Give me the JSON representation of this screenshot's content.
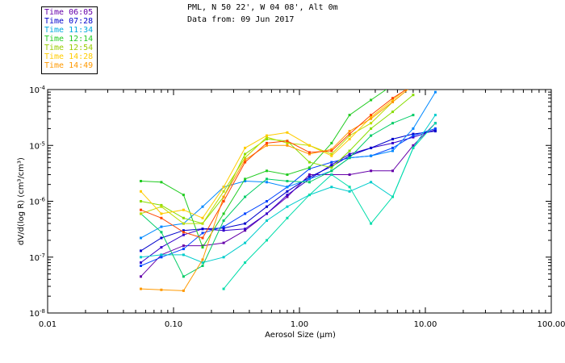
{
  "chart_data": {
    "type": "line",
    "title": "PML, N 50 22', W 04 08', Alt 0m",
    "subtitle": "Data from: 09 Jun 2017",
    "xlabel": "Aerosol Size (µm)",
    "ylabel": "dV/d(log R) (cm³/cm³)",
    "xscale": "log",
    "yscale": "log",
    "xlim": [
      0.01,
      100
    ],
    "ylim": [
      1e-08,
      0.0001
    ],
    "x_ticks": [
      {
        "value": 0.01,
        "label": "0.01"
      },
      {
        "value": 0.1,
        "label": "0.10"
      },
      {
        "value": 1,
        "label": "1.00"
      },
      {
        "value": 10,
        "label": "10.00"
      },
      {
        "value": 100,
        "label": "100.00"
      }
    ],
    "y_ticks": [
      {
        "value": 1e-08,
        "base": "10",
        "exp": "-8"
      },
      {
        "value": 1e-07,
        "base": "10",
        "exp": "-7"
      },
      {
        "value": 1e-06,
        "base": "10",
        "exp": "-6"
      },
      {
        "value": 1e-05,
        "base": "10",
        "exp": "-5"
      },
      {
        "value": 0.0001,
        "base": "10",
        "exp": "-4"
      }
    ],
    "x": [
      0.055,
      0.08,
      0.12,
      0.17,
      0.25,
      0.37,
      0.55,
      0.8,
      1.2,
      1.8,
      2.5,
      3.7,
      5.5,
      8.0,
      12.0
    ],
    "series": [
      {
        "name": "Time 06:05",
        "color": "#6600aa",
        "values": [
          4.5e-08,
          1.1e-07,
          1.6e-07,
          1.6e-07,
          1.8e-07,
          3e-07,
          6e-07,
          1.2e-06,
          3e-06,
          3e-06,
          3e-06,
          3.5e-06,
          3.5e-06,
          1e-05,
          2.5e-05
        ]
      },
      {
        "name": "Time 06:05",
        "color": "#3300cc",
        "values": [
          8e-08,
          1.5e-07,
          2.5e-07,
          3.2e-07,
          3e-07,
          3.2e-07,
          6e-07,
          1.3e-06,
          2.5e-06,
          4.5e-06,
          7e-06,
          9e-06,
          1.1e-05,
          1.4e-05,
          1.9e-05
        ]
      },
      {
        "name": "Time 07:28",
        "color": "#0000cc",
        "values": [
          1.3e-07,
          2.2e-07,
          3e-07,
          3.2e-07,
          3.3e-07,
          4e-07,
          8e-07,
          1.5e-06,
          2.7e-06,
          4.2e-06,
          6.5e-06,
          9e-06,
          1.3e-05,
          1.6e-05,
          1.8e-05
        ]
      },
      {
        "name": "Time 07:28",
        "color": "#0044ff",
        "values": [
          7e-08,
          1e-07,
          1.4e-07,
          2.7e-07,
          3.5e-07,
          6e-07,
          1e-06,
          1.8e-06,
          3.8e-06,
          5e-06,
          6e-06,
          6.5e-06,
          9e-06,
          1.5e-05,
          2e-05
        ]
      },
      {
        "name": "Time 11:34",
        "color": "#0088ff",
        "values": [
          2.2e-07,
          3.5e-07,
          4e-07,
          8e-07,
          1.8e-06,
          2.3e-06,
          2.2e-06,
          1.8e-06,
          2.5e-06,
          3.5e-06,
          6e-06,
          6.5e-06,
          8e-06,
          2e-05,
          9e-05
        ]
      },
      {
        "name": "Time 11:34",
        "color": "#00cccc",
        "values": [
          1e-07,
          1.1e-07,
          1.1e-07,
          8e-08,
          1e-07,
          1.8e-07,
          4.5e-07,
          8e-07,
          1.3e-06,
          1.8e-06,
          1.5e-06,
          2.2e-06,
          1.2e-06,
          9e-06,
          3.5e-05
        ]
      },
      {
        "name": "Time 11:34",
        "color": "#00ddaa",
        "values": [
          null,
          null,
          null,
          null,
          2.7e-08,
          8e-08,
          2e-07,
          5e-07,
          1.3e-06,
          3e-06,
          1.8e-06,
          4e-07,
          1.2e-06,
          9e-06,
          2.5e-05
        ]
      },
      {
        "name": "Time 12:14",
        "color": "#00cc66",
        "values": [
          6e-07,
          2.8e-07,
          4.5e-08,
          7e-08,
          4.5e-07,
          1.2e-06,
          2.5e-06,
          2.3e-06,
          2.2e-06,
          3.5e-06,
          6e-06,
          1.5e-05,
          2.5e-05,
          3.5e-05,
          null
        ]
      },
      {
        "name": "Time 12:14",
        "color": "#22cc22",
        "values": [
          2.3e-06,
          2.2e-06,
          1.3e-06,
          1.5e-07,
          6e-07,
          2.5e-06,
          3.5e-06,
          3e-06,
          4e-06,
          1.1e-05,
          3.5e-05,
          6.5e-05,
          0.00012,
          null,
          null
        ]
      },
      {
        "name": "Time 12:54",
        "color": "#88dd00",
        "values": [
          1e-06,
          8.5e-07,
          5e-07,
          4e-07,
          1.2e-06,
          7e-06,
          1.3e-05,
          1.2e-05,
          5e-06,
          4e-06,
          8e-06,
          2e-05,
          4e-05,
          8e-05,
          null
        ]
      },
      {
        "name": "Time 12:54",
        "color": "#bbdd00",
        "values": [
          6e-07,
          8e-07,
          4e-07,
          4e-07,
          1.5e-06,
          6e-06,
          1.4e-05,
          1.1e-05,
          1e-05,
          7e-06,
          1.5e-05,
          2.5e-05,
          6e-05,
          0.00012,
          null
        ]
      },
      {
        "name": "Time 14:28",
        "color": "#ffcc00",
        "values": [
          1.5e-06,
          6e-07,
          7e-07,
          5e-07,
          1.8e-06,
          9e-06,
          1.5e-05,
          1.7e-05,
          1e-05,
          6.5e-06,
          1.3e-05,
          3.2e-05,
          6.5e-05,
          0.00013,
          null
        ]
      },
      {
        "name": "Time 14:28",
        "color": "#ff9900",
        "values": [
          2.7e-08,
          2.6e-08,
          2.5e-08,
          9e-08,
          1.2e-06,
          5.5e-06,
          1e-05,
          1e-05,
          7e-06,
          8.5e-06,
          1.8e-05,
          3e-05,
          6e-05,
          0.00012,
          null
        ]
      },
      {
        "name": "Time 14:49",
        "color": "#ff4400",
        "values": [
          7e-07,
          5e-07,
          2.8e-07,
          2.2e-07,
          1e-06,
          5e-06,
          1.1e-05,
          1.2e-05,
          7.5e-06,
          8e-06,
          1.6e-05,
          3.5e-05,
          7e-05,
          0.00012,
          null
        ]
      }
    ],
    "legend": {
      "placement": "top-left",
      "items": [
        {
          "label": "Time 06:05",
          "color": "#6600aa"
        },
        {
          "label": "Time 07:28",
          "color": "#0000cc"
        },
        {
          "label": "Time 11:34",
          "color": "#00aadd"
        },
        {
          "label": "Time 12:14",
          "color": "#22cc22"
        },
        {
          "label": "Time 12:54",
          "color": "#99cc00"
        },
        {
          "label": "Time 14:28",
          "color": "#ffcc00"
        },
        {
          "label": "Time 14:49",
          "color": "#ff9900"
        }
      ]
    },
    "grid": false
  }
}
